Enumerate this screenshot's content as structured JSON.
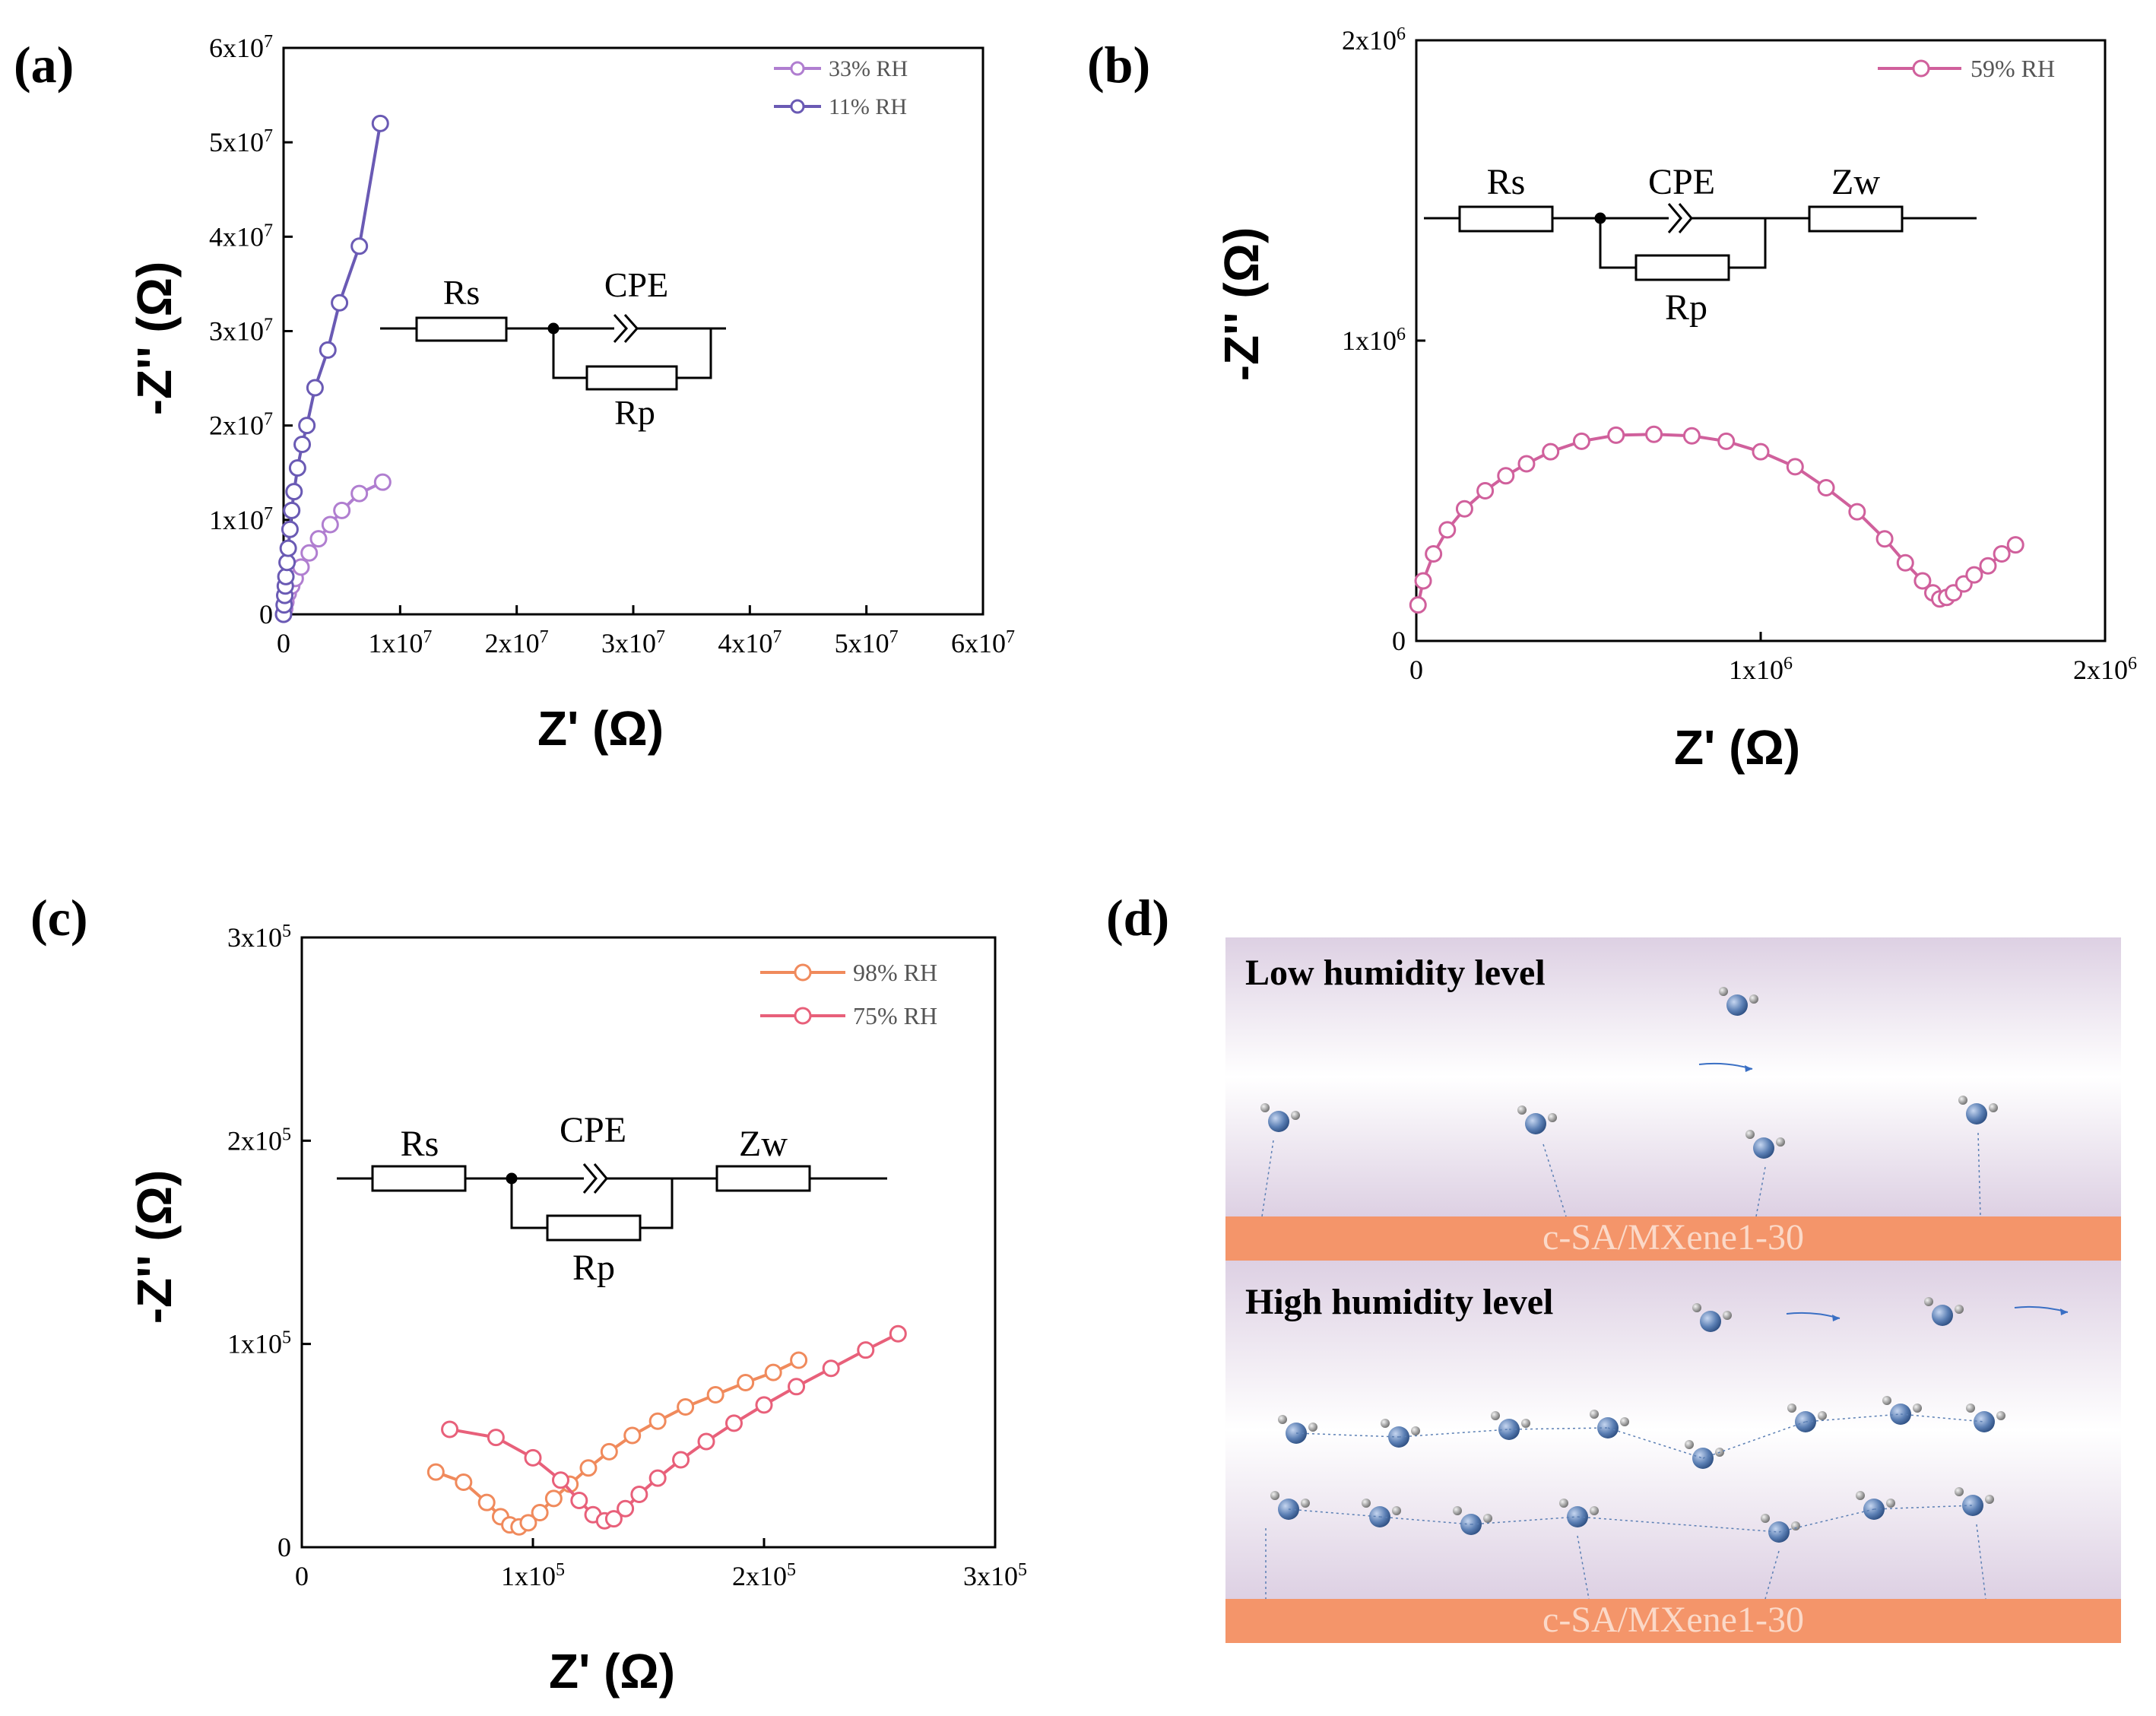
{
  "chart_data": [
    {
      "id": "a",
      "panel_label": "(a)",
      "type": "scatter",
      "xlabel": "Z' (Ω)",
      "ylabel": "-Z'' (Ω)",
      "xlim": [
        0,
        60000000
      ],
      "ylim": [
        0,
        60000000
      ],
      "xticks": [
        {
          "value": 0,
          "base": "0",
          "exp": ""
        },
        {
          "value": 10000000,
          "base": "1x10",
          "exp": "7"
        },
        {
          "value": 20000000,
          "base": "2x10",
          "exp": "7"
        },
        {
          "value": 30000000,
          "base": "3x10",
          "exp": "7"
        },
        {
          "value": 40000000,
          "base": "4x10",
          "exp": "7"
        },
        {
          "value": 50000000,
          "base": "5x10",
          "exp": "7"
        },
        {
          "value": 60000000,
          "base": "6x10",
          "exp": "7"
        }
      ],
      "yticks": [
        {
          "value": 0,
          "base": "0",
          "exp": ""
        },
        {
          "value": 10000000,
          "base": "1x10",
          "exp": "7"
        },
        {
          "value": 20000000,
          "base": "2x10",
          "exp": "7"
        },
        {
          "value": 30000000,
          "base": "3x10",
          "exp": "7"
        },
        {
          "value": 40000000,
          "base": "4x10",
          "exp": "7"
        },
        {
          "value": 50000000,
          "base": "5x10",
          "exp": "7"
        },
        {
          "value": 60000000,
          "base": "6x10",
          "exp": "7"
        }
      ],
      "legend": "top-right",
      "series": [
        {
          "name": "33% RH",
          "color": "#b07ed0",
          "x": [
            0,
            100000,
            200000,
            400000,
            700000,
            1000000,
            1500000,
            2200000,
            3000000,
            4000000,
            5000000,
            6500000,
            8500000
          ],
          "y": [
            0,
            600000,
            1300000,
            2200000,
            3000000,
            3800000,
            5000000,
            6500000,
            8000000,
            9500000,
            11000000,
            12800000,
            14000000
          ]
        },
        {
          "name": "11% RH",
          "color": "#6a5ab4",
          "x": [
            0,
            50000,
            100000,
            150000,
            200000,
            300000,
            400000,
            550000,
            700000,
            900000,
            1200000,
            1600000,
            2000000,
            2700000,
            3800000,
            4800000,
            6500000,
            8300000
          ],
          "y": [
            0,
            1000000,
            2000000,
            3000000,
            4000000,
            5500000,
            7000000,
            9000000,
            11000000,
            13000000,
            15500000,
            18000000,
            20000000,
            24000000,
            28000000,
            33000000,
            39000000,
            52000000
          ]
        }
      ]
    },
    {
      "id": "b",
      "panel_label": "(b)",
      "type": "scatter",
      "xlabel": "Z' (Ω)",
      "ylabel": "-Z'' (Ω)",
      "xlim": [
        0,
        2000000
      ],
      "ylim": [
        0,
        2000000
      ],
      "xticks": [
        {
          "value": 0,
          "base": "0",
          "exp": ""
        },
        {
          "value": 1000000,
          "base": "1x10",
          "exp": "6"
        },
        {
          "value": 2000000,
          "base": "2x10",
          "exp": "6"
        }
      ],
      "yticks": [
        {
          "value": 0,
          "base": "0",
          "exp": ""
        },
        {
          "value": 1000000,
          "base": "1x10",
          "exp": "6"
        },
        {
          "value": 2000000,
          "base": "2x10",
          "exp": "6"
        }
      ],
      "legend": "top-right",
      "series": [
        {
          "name": "59% RH",
          "color": "#d0609c",
          "x": [
            5000,
            20000,
            50000,
            90000,
            140000,
            200000,
            260000,
            320000,
            390000,
            480000,
            580000,
            690000,
            800000,
            900000,
            1000000,
            1100000,
            1190000,
            1280000,
            1360000,
            1420000,
            1470000,
            1500000,
            1520000,
            1540000,
            1560000,
            1590000,
            1620000,
            1660000,
            1700000,
            1740000
          ],
          "y": [
            120000,
            200000,
            290000,
            370000,
            440000,
            500000,
            550000,
            590000,
            630000,
            665000,
            685000,
            688000,
            683000,
            665000,
            630000,
            580000,
            510000,
            430000,
            340000,
            260000,
            200000,
            160000,
            140000,
            145000,
            160000,
            190000,
            220000,
            250000,
            290000,
            320000
          ]
        }
      ]
    },
    {
      "id": "c",
      "panel_label": "(c)",
      "type": "scatter",
      "xlabel": "Z' (Ω)",
      "ylabel": "-Z'' (Ω)",
      "xlim": [
        0,
        300000
      ],
      "ylim": [
        0,
        300000
      ],
      "xticks": [
        {
          "value": 0,
          "base": "0",
          "exp": ""
        },
        {
          "value": 100000,
          "base": "1x10",
          "exp": "5"
        },
        {
          "value": 200000,
          "base": "2x10",
          "exp": "5"
        },
        {
          "value": 300000,
          "base": "3x10",
          "exp": "5"
        }
      ],
      "yticks": [
        {
          "value": 0,
          "base": "0",
          "exp": ""
        },
        {
          "value": 100000,
          "base": "1x10",
          "exp": "5"
        },
        {
          "value": 200000,
          "base": "2x10",
          "exp": "5"
        },
        {
          "value": 300000,
          "base": "3x10",
          "exp": "5"
        }
      ],
      "legend": "top-right",
      "series": [
        {
          "name": "98% RH",
          "color": "#f08a5c",
          "x": [
            58000,
            70000,
            80000,
            86000,
            90000,
            94000,
            98000,
            103000,
            109000,
            116000,
            124000,
            133000,
            143000,
            154000,
            166000,
            179000,
            192000,
            204000,
            215000
          ],
          "y": [
            37000,
            32000,
            22000,
            15000,
            11000,
            10000,
            12000,
            17000,
            24000,
            31000,
            39000,
            47000,
            55000,
            62000,
            69000,
            75000,
            81000,
            86000,
            92000
          ]
        },
        {
          "name": "75% RH",
          "color": "#e8607a",
          "x": [
            64000,
            84000,
            100000,
            112000,
            120000,
            126000,
            131000,
            135000,
            140000,
            146000,
            154000,
            164000,
            175000,
            187000,
            200000,
            214000,
            229000,
            244000,
            258000
          ],
          "y": [
            58000,
            54000,
            44000,
            33000,
            23000,
            16000,
            13000,
            14000,
            19000,
            26000,
            34000,
            43000,
            52000,
            61000,
            70000,
            79000,
            88000,
            97000,
            105000
          ]
        }
      ]
    }
  ],
  "circuits": {
    "a": {
      "rs": "Rs",
      "cpe": "CPE",
      "rp": "Rp"
    },
    "b": {
      "rs": "Rs",
      "cpe": "CPE",
      "rp": "Rp",
      "zw": "Zw"
    },
    "c": {
      "rs": "Rs",
      "cpe": "CPE",
      "rp": "Rp",
      "zw": "Zw"
    }
  },
  "schematic": {
    "panel_label": "(d)",
    "low_title": "Low humidity level",
    "high_title": "High humidity level",
    "substrate_top": "c-SA/MXene1-30",
    "substrate_bottom": "c-SA/MXene1-30",
    "colors": {
      "substrate": "#f4956a",
      "substrate_text": "#fbd9c8",
      "band": "#ddd0e3",
      "oxygen": "#5b7fb4",
      "hydrogen": "#9a9a9a",
      "flow": "#3a6fc4"
    }
  }
}
